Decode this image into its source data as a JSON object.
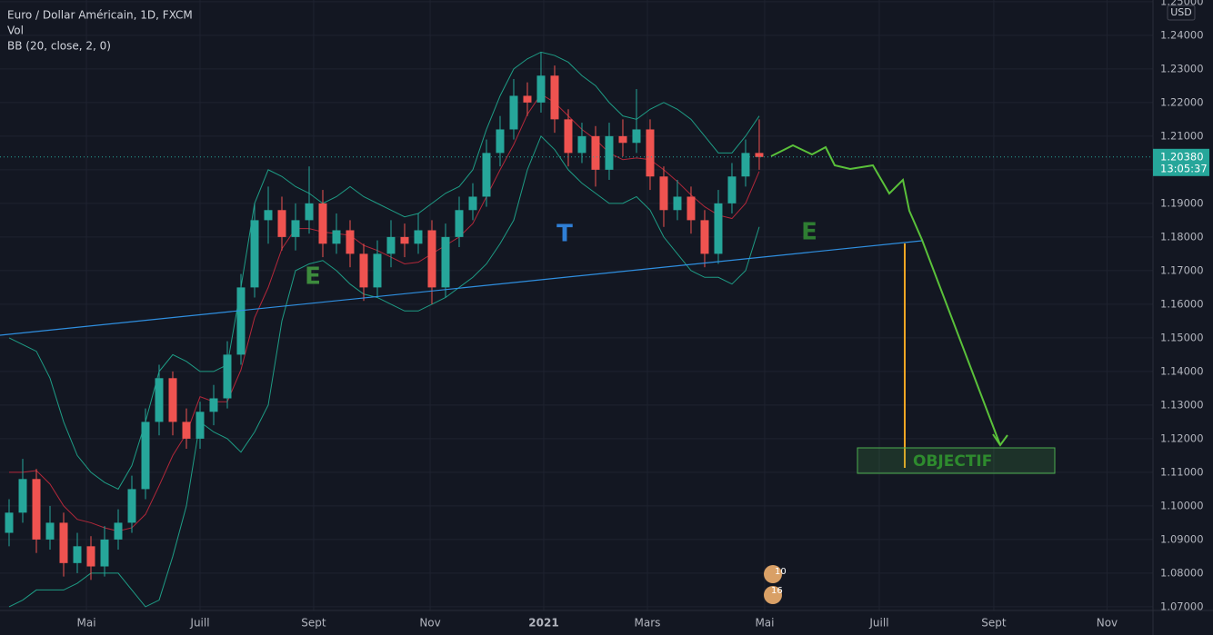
{
  "chart_data": {
    "type": "candlestick",
    "title": "Euro / Dollar Américain, 1D, FXCM",
    "indicators": [
      "Vol",
      "BB (20, close, 2, 0)"
    ],
    "currency": "USD",
    "up_color": "#26a69a",
    "down_color": "#ef5350",
    "band_color": "#1e9c85",
    "basis_color": "#b2283a",
    "ohlc": [
      [
        1.092,
        1.102,
        1.088,
        1.098
      ],
      [
        1.098,
        1.114,
        1.095,
        1.108
      ],
      [
        1.108,
        1.111,
        1.086,
        1.09
      ],
      [
        1.09,
        1.1,
        1.087,
        1.095
      ],
      [
        1.095,
        1.098,
        1.079,
        1.083
      ],
      [
        1.083,
        1.092,
        1.08,
        1.088
      ],
      [
        1.088,
        1.091,
        1.078,
        1.082
      ],
      [
        1.082,
        1.094,
        1.079,
        1.09
      ],
      [
        1.09,
        1.099,
        1.087,
        1.095
      ],
      [
        1.095,
        1.109,
        1.092,
        1.105
      ],
      [
        1.105,
        1.129,
        1.102,
        1.125
      ],
      [
        1.125,
        1.142,
        1.121,
        1.138
      ],
      [
        1.138,
        1.14,
        1.121,
        1.125
      ],
      [
        1.125,
        1.129,
        1.117,
        1.12
      ],
      [
        1.12,
        1.131,
        1.117,
        1.128
      ],
      [
        1.128,
        1.136,
        1.124,
        1.132
      ],
      [
        1.132,
        1.149,
        1.129,
        1.145
      ],
      [
        1.145,
        1.169,
        1.142,
        1.165
      ],
      [
        1.165,
        1.19,
        1.162,
        1.185
      ],
      [
        1.185,
        1.195,
        1.178,
        1.188
      ],
      [
        1.188,
        1.192,
        1.176,
        1.18
      ],
      [
        1.18,
        1.19,
        1.176,
        1.185
      ],
      [
        1.185,
        1.201,
        1.181,
        1.19
      ],
      [
        1.19,
        1.194,
        1.174,
        1.178
      ],
      [
        1.178,
        1.187,
        1.175,
        1.182
      ],
      [
        1.182,
        1.185,
        1.171,
        1.175
      ],
      [
        1.175,
        1.178,
        1.161,
        1.165
      ],
      [
        1.165,
        1.179,
        1.162,
        1.175
      ],
      [
        1.175,
        1.185,
        1.171,
        1.18
      ],
      [
        1.18,
        1.184,
        1.174,
        1.178
      ],
      [
        1.178,
        1.187,
        1.175,
        1.182
      ],
      [
        1.182,
        1.185,
        1.16,
        1.165
      ],
      [
        1.165,
        1.184,
        1.162,
        1.18
      ],
      [
        1.18,
        1.192,
        1.177,
        1.188
      ],
      [
        1.188,
        1.196,
        1.185,
        1.192
      ],
      [
        1.192,
        1.209,
        1.189,
        1.205
      ],
      [
        1.205,
        1.216,
        1.201,
        1.212
      ],
      [
        1.212,
        1.227,
        1.209,
        1.222
      ],
      [
        1.222,
        1.226,
        1.216,
        1.22
      ],
      [
        1.22,
        1.235,
        1.217,
        1.228
      ],
      [
        1.228,
        1.231,
        1.211,
        1.215
      ],
      [
        1.215,
        1.218,
        1.201,
        1.205
      ],
      [
        1.205,
        1.214,
        1.202,
        1.21
      ],
      [
        1.21,
        1.213,
        1.195,
        1.2
      ],
      [
        1.2,
        1.214,
        1.197,
        1.21
      ],
      [
        1.21,
        1.215,
        1.204,
        1.208
      ],
      [
        1.208,
        1.224,
        1.205,
        1.212
      ],
      [
        1.212,
        1.215,
        1.194,
        1.198
      ],
      [
        1.198,
        1.201,
        1.183,
        1.188
      ],
      [
        1.188,
        1.197,
        1.185,
        1.192
      ],
      [
        1.192,
        1.195,
        1.181,
        1.185
      ],
      [
        1.185,
        1.188,
        1.171,
        1.175
      ],
      [
        1.175,
        1.194,
        1.172,
        1.19
      ],
      [
        1.19,
        1.202,
        1.187,
        1.198
      ],
      [
        1.198,
        1.209,
        1.195,
        1.205
      ],
      [
        1.205,
        1.215,
        1.2,
        1.2038
      ]
    ],
    "bb_upper": [
      1.15,
      1.148,
      1.146,
      1.138,
      1.125,
      1.115,
      1.11,
      1.107,
      1.105,
      1.112,
      1.125,
      1.14,
      1.145,
      1.143,
      1.14,
      1.14,
      1.142,
      1.165,
      1.19,
      1.2,
      1.198,
      1.195,
      1.193,
      1.19,
      1.192,
      1.195,
      1.192,
      1.19,
      1.188,
      1.186,
      1.187,
      1.19,
      1.193,
      1.195,
      1.2,
      1.212,
      1.222,
      1.23,
      1.233,
      1.235,
      1.234,
      1.232,
      1.228,
      1.225,
      1.22,
      1.216,
      1.215,
      1.218,
      1.22,
      1.218,
      1.215,
      1.21,
      1.205,
      1.205,
      1.21,
      1.216
    ],
    "bb_basis": [
      1.11,
      1.11,
      1.1105,
      1.1065,
      1.1,
      1.096,
      1.095,
      1.0935,
      1.0925,
      1.0935,
      1.0975,
      1.106,
      1.115,
      1.1215,
      1.1325,
      1.131,
      1.131,
      1.1405,
      1.156,
      1.165,
      1.1765,
      1.1825,
      1.1825,
      1.1815,
      1.181,
      1.1805,
      1.1775,
      1.176,
      1.174,
      1.172,
      1.1725,
      1.175,
      1.1775,
      1.18,
      1.184,
      1.192,
      1.2,
      1.2075,
      1.2165,
      1.2225,
      1.22,
      1.216,
      1.212,
      1.209,
      1.205,
      1.203,
      1.2035,
      1.203,
      1.2,
      1.1965,
      1.1925,
      1.189,
      1.1865,
      1.1855,
      1.19,
      1.1995
    ],
    "bb_lower": [
      1.07,
      1.072,
      1.075,
      1.075,
      1.075,
      1.077,
      1.08,
      1.08,
      1.08,
      1.075,
      1.07,
      1.072,
      1.085,
      1.1,
      1.125,
      1.122,
      1.12,
      1.116,
      1.122,
      1.13,
      1.155,
      1.17,
      1.172,
      1.173,
      1.17,
      1.166,
      1.163,
      1.162,
      1.16,
      1.158,
      1.158,
      1.16,
      1.162,
      1.165,
      1.168,
      1.172,
      1.178,
      1.185,
      1.2,
      1.21,
      1.206,
      1.2,
      1.196,
      1.193,
      1.19,
      1.19,
      1.192,
      1.188,
      1.18,
      1.175,
      1.17,
      1.168,
      1.168,
      1.166,
      1.17,
      1.183
    ],
    "xlim": [
      -0.667,
      83.87
    ],
    "xticks": [
      {
        "value": 5.67,
        "label": "Mai"
      },
      {
        "value": 14,
        "label": "Juill"
      },
      {
        "value": 22.33,
        "label": "Sept"
      },
      {
        "value": 30.87,
        "label": "Nov"
      },
      {
        "value": 39.2,
        "label": "2021"
      },
      {
        "value": 46.8,
        "label": "Mars"
      },
      {
        "value": 55.4,
        "label": "Mai"
      },
      {
        "value": 63.8,
        "label": "Juill"
      },
      {
        "value": 72.2,
        "label": "Sept"
      },
      {
        "value": 80.5,
        "label": "Nov"
      }
    ],
    "ylim": [
      1.0689,
      1.2505
    ],
    "yticks": [
      {
        "value": 1.07,
        "label": "1.07000"
      },
      {
        "value": 1.08,
        "label": "1.08000"
      },
      {
        "value": 1.09,
        "label": "1.09000"
      },
      {
        "value": 1.1,
        "label": "1.10000"
      },
      {
        "value": 1.11,
        "label": "1.11000"
      },
      {
        "value": 1.12,
        "label": "1.12000"
      },
      {
        "value": 1.13,
        "label": "1.13000"
      },
      {
        "value": 1.14,
        "label": "1.14000"
      },
      {
        "value": 1.15,
        "label": "1.15000"
      },
      {
        "value": 1.16,
        "label": "1.16000"
      },
      {
        "value": 1.17,
        "label": "1.17000"
      },
      {
        "value": 1.18,
        "label": "1.18000"
      },
      {
        "value": 1.19,
        "label": "1.19000"
      },
      {
        "value": 1.2,
        "label": "1.20000"
      },
      {
        "value": 1.21,
        "label": "1.21000"
      },
      {
        "value": 1.22,
        "label": "1.22000"
      },
      {
        "value": 1.23,
        "label": "1.23000"
      },
      {
        "value": 1.24,
        "label": "1.24000"
      },
      {
        "value": 1.25,
        "label": "1.25000"
      }
    ],
    "grid": true,
    "current_price": {
      "value": 1.2038,
      "label": "1.20380"
    },
    "countdown": "13:05:37",
    "events": [
      "10",
      "16"
    ],
    "annotations": [
      "E",
      "T",
      "E",
      "OBJECTIF"
    ]
  }
}
